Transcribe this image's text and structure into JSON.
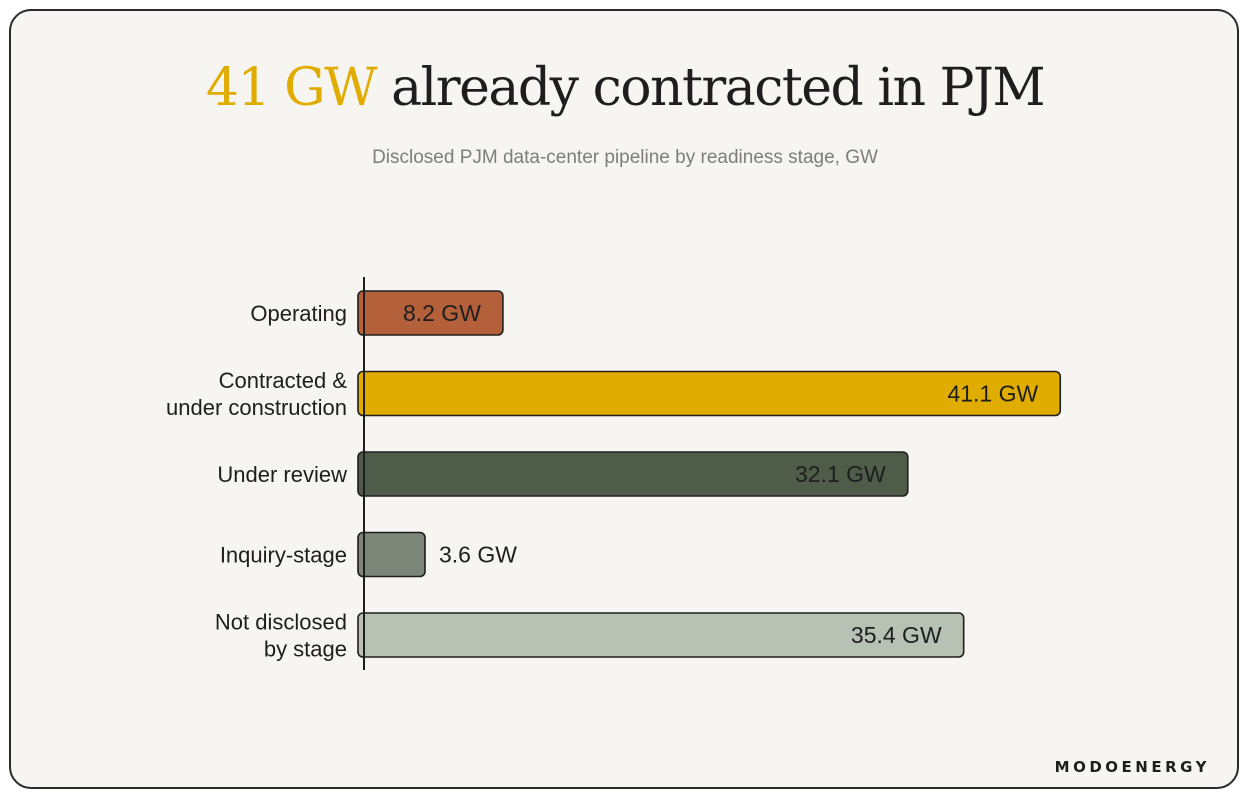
{
  "header": {
    "title_highlight": "41 GW",
    "title_rest": " already contracted in PJM",
    "subtitle": "Disclosed PJM data-center pipeline by readiness stage, GW"
  },
  "brand": "MODOENERGY",
  "colors": {
    "accent": "#e0ac00",
    "background": "#f7f5f1",
    "text": "#1e1e1e"
  },
  "chart_data": {
    "type": "bar",
    "orientation": "horizontal",
    "title": "41 GW already contracted in PJM",
    "subtitle": "Disclosed PJM data-center pipeline by readiness stage, GW",
    "xlabel": "",
    "ylabel": "",
    "xlim": [
      0,
      45
    ],
    "grid": false,
    "unit": "GW",
    "categories": [
      [
        "Operating"
      ],
      [
        "Contracted &",
        "under construction"
      ],
      [
        "Under review"
      ],
      [
        "Inquiry-stage"
      ],
      [
        "Not disclosed",
        "by stage"
      ]
    ],
    "values": [
      8.2,
      41.1,
      32.1,
      3.6,
      35.4
    ],
    "value_labels": [
      "8.2 GW",
      "41.1 GW",
      "32.1 GW",
      "3.6 GW",
      "35.4 GW"
    ],
    "colors": [
      "#b4603a",
      "#e0ac00",
      "#4f5c4a",
      "#7b8578",
      "#b7c1b4"
    ],
    "label_colors": [
      "#ffffff",
      "#ffffff",
      "#ffffff",
      "#2a2a2a",
      "#ffffff"
    ]
  }
}
